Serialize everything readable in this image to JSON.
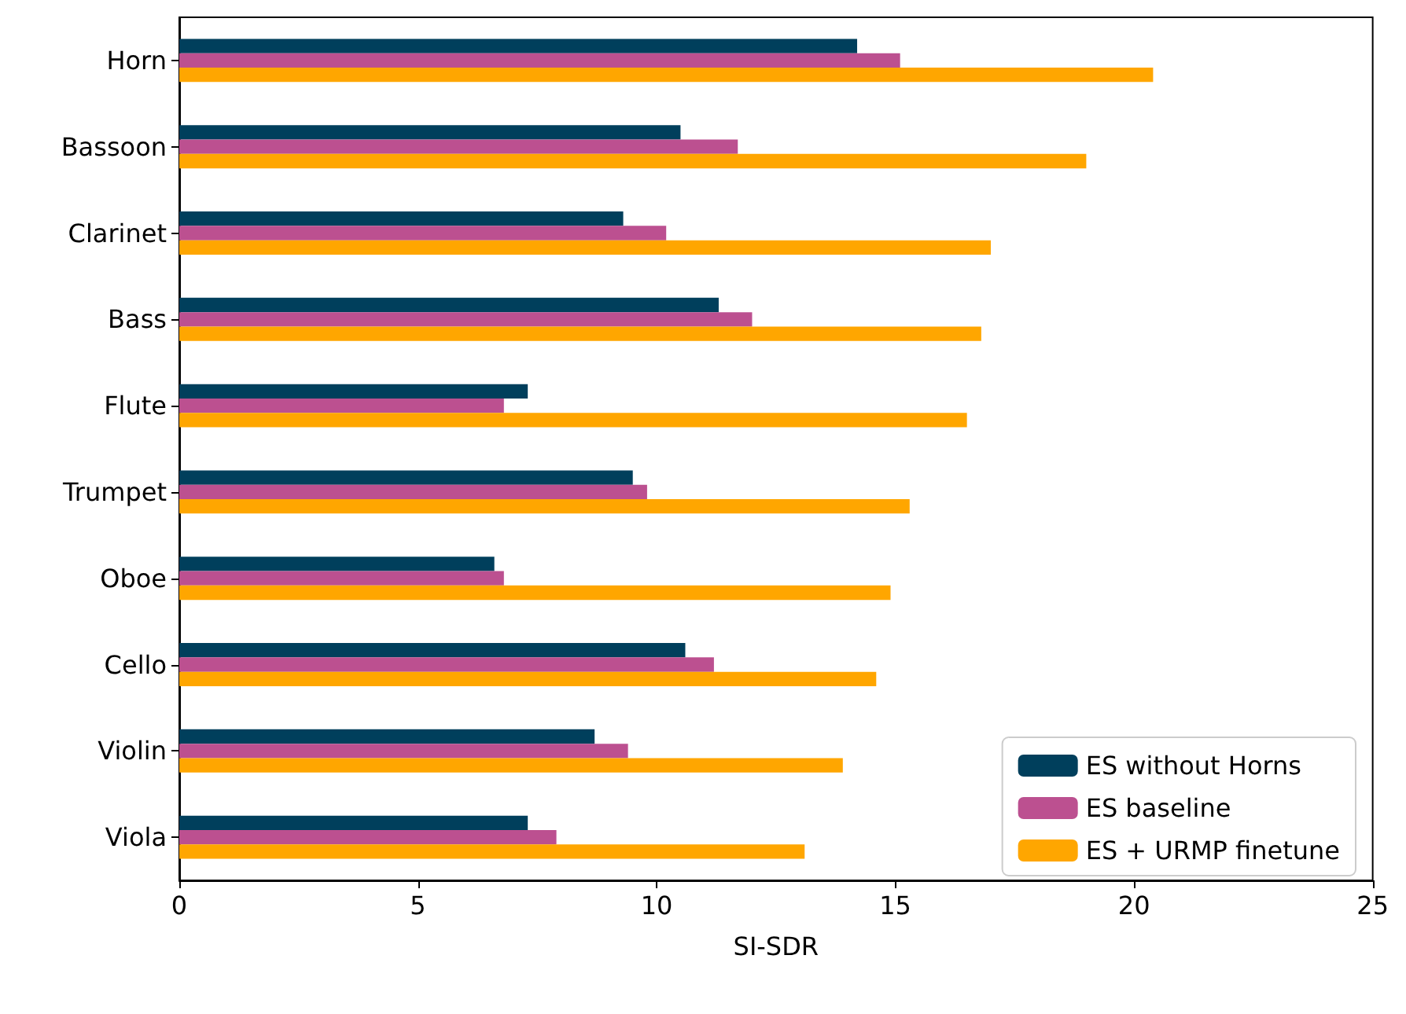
{
  "chart_data": {
    "type": "bar",
    "orientation": "horizontal",
    "xlabel": "SI-SDR",
    "categories": [
      "Horn",
      "Bassoon",
      "Clarinet",
      "Bass",
      "Flute",
      "Trumpet",
      "Oboe",
      "Cello",
      "Violin",
      "Viola"
    ],
    "series": [
      {
        "name": "ES without Horns",
        "color": "#003f5c",
        "values": [
          14.2,
          10.5,
          9.3,
          11.3,
          7.3,
          9.5,
          6.6,
          10.6,
          8.7,
          7.3
        ]
      },
      {
        "name": "ES baseline",
        "color": "#bc5090",
        "values": [
          15.1,
          11.7,
          10.2,
          12.0,
          6.8,
          9.8,
          6.8,
          11.2,
          9.4,
          7.9
        ]
      },
      {
        "name": "ES + URMP finetune",
        "color": "#ffa600",
        "values": [
          20.4,
          19.0,
          17.0,
          16.8,
          16.5,
          15.3,
          14.9,
          14.6,
          13.9,
          13.1
        ]
      }
    ],
    "xlim": [
      0,
      25
    ],
    "xticks": [
      0,
      5,
      10,
      15,
      20,
      25
    ],
    "grid": false,
    "legend": "bottom right"
  }
}
